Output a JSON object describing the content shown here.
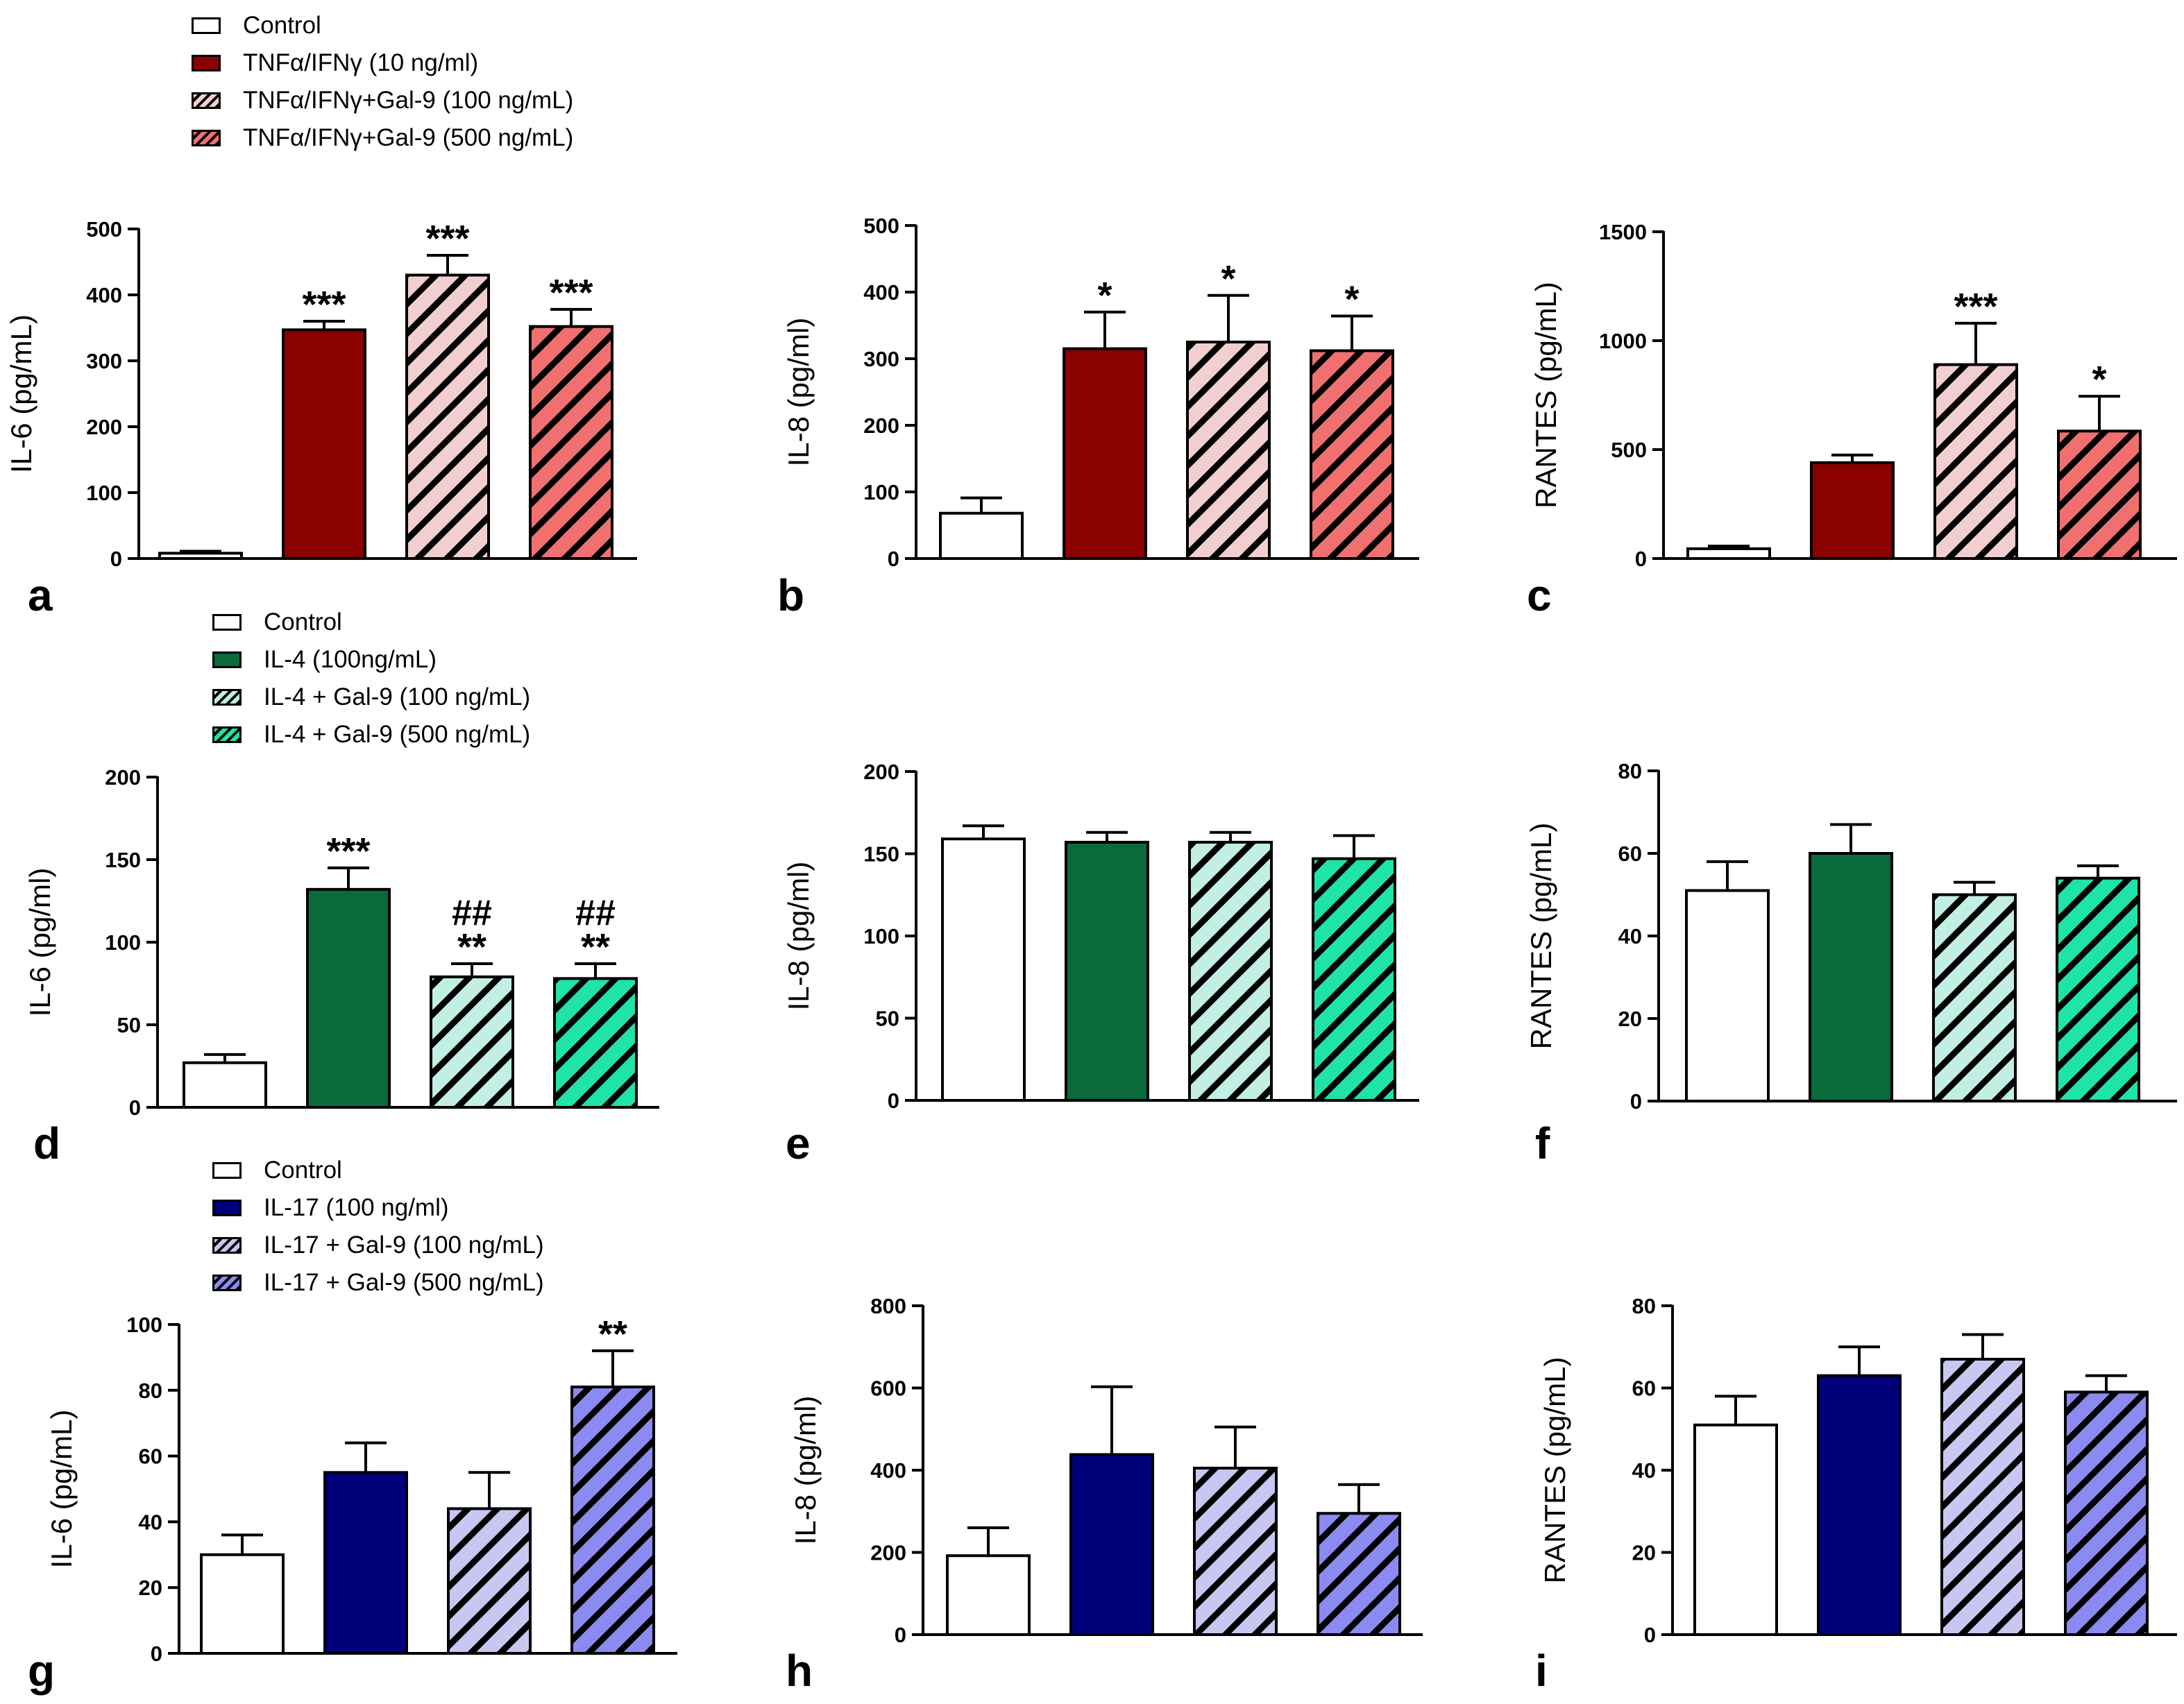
{
  "legends": [
    {
      "id": "tnf",
      "items": [
        {
          "label": "Control",
          "color": "#ffffff",
          "pattern": "none"
        },
        {
          "label": "TNFα/IFNγ (10 ng/ml)",
          "color": "#8b0000",
          "pattern": "none"
        },
        {
          "label": "TNFα/IFNγ+Gal-9 (100 ng/mL)",
          "color": "#f2cfcf",
          "pattern": "hatch"
        },
        {
          "label": "TNFα/IFNγ+Gal-9 (500 ng/mL)",
          "color": "#f07070",
          "pattern": "hatch"
        }
      ]
    },
    {
      "id": "il4",
      "items": [
        {
          "label": "Control",
          "color": "#ffffff",
          "pattern": "none"
        },
        {
          "label": "IL-4 (100ng/mL)",
          "color": "#0a6a3c",
          "pattern": "none"
        },
        {
          "label": "IL-4 + Gal-9 (100 ng/mL)",
          "color": "#c2efe3",
          "pattern": "hatch"
        },
        {
          "label": "IL-4 + Gal-9 (500 ng/mL)",
          "color": "#1fe3a8",
          "pattern": "hatch"
        }
      ]
    },
    {
      "id": "il17",
      "items": [
        {
          "label": "Control",
          "color": "#ffffff",
          "pattern": "none"
        },
        {
          "label": "IL-17 (100 ng/ml)",
          "color": "#00007a",
          "pattern": "none"
        },
        {
          "label": "IL-17 + Gal-9 (100 ng/mL)",
          "color": "#c7c7f2",
          "pattern": "hatch"
        },
        {
          "label": "IL-17 + Gal-9 (500 ng/mL)",
          "color": "#8a8af0",
          "pattern": "hatch"
        }
      ]
    }
  ],
  "chart_data": [
    {
      "panel": "a",
      "type": "bar",
      "ylabel": "IL-6 (pg/mL)",
      "ylim": [
        0,
        500
      ],
      "yticks": [
        0,
        100,
        200,
        300,
        400,
        500
      ],
      "legend": "tnf",
      "values": [
        8,
        347,
        430,
        352
      ],
      "errors": [
        3,
        13,
        30,
        26
      ],
      "sig": [
        "",
        "***",
        "***",
        "***"
      ],
      "sig2": [
        "",
        "",
        "",
        ""
      ]
    },
    {
      "panel": "b",
      "type": "bar",
      "ylabel": "IL-8 (pg/ml)",
      "ylim": [
        0,
        500
      ],
      "yticks": [
        0,
        100,
        200,
        300,
        400,
        500
      ],
      "legend": "tnf",
      "values": [
        68,
        315,
        325,
        312
      ],
      "errors": [
        23,
        55,
        70,
        52
      ],
      "sig": [
        "",
        "*",
        "*",
        "*"
      ],
      "sig2": [
        "",
        "",
        "",
        ""
      ]
    },
    {
      "panel": "c",
      "type": "bar",
      "ylabel": "RANTES (pg/mL)",
      "ylim": [
        0,
        1500
      ],
      "yticks": [
        0,
        500,
        1000,
        1500
      ],
      "legend": "tnf",
      "values": [
        45,
        440,
        890,
        585
      ],
      "errors": [
        12,
        35,
        190,
        160
      ],
      "sig": [
        "",
        "",
        "***",
        "*"
      ],
      "sig2": [
        "",
        "",
        "",
        ""
      ]
    },
    {
      "panel": "d",
      "type": "bar",
      "ylabel": "IL-6 (pg/ml)",
      "ylim": [
        0,
        200
      ],
      "yticks": [
        0,
        50,
        100,
        150,
        200
      ],
      "legend": "il4",
      "values": [
        27,
        132,
        79,
        78
      ],
      "errors": [
        5,
        13,
        8,
        9
      ],
      "sig": [
        "",
        "***",
        "**",
        "**"
      ],
      "sig2": [
        "",
        "",
        "##",
        "##"
      ]
    },
    {
      "panel": "e",
      "type": "bar",
      "ylabel": "IL-8 (pg/ml)",
      "ylim": [
        0,
        200
      ],
      "yticks": [
        0,
        50,
        100,
        150,
        200
      ],
      "legend": "il4",
      "values": [
        159,
        157,
        157,
        147
      ],
      "errors": [
        8,
        6,
        6,
        14
      ],
      "sig": [
        "",
        "",
        "",
        ""
      ],
      "sig2": [
        "",
        "",
        "",
        ""
      ]
    },
    {
      "panel": "f",
      "type": "bar",
      "ylabel": "RANTES (pg/mL)",
      "ylim": [
        0,
        80
      ],
      "yticks": [
        0,
        20,
        40,
        60,
        80
      ],
      "legend": "il4",
      "values": [
        51,
        60,
        50,
        54
      ],
      "errors": [
        7,
        7,
        3,
        3
      ],
      "sig": [
        "",
        "",
        "",
        ""
      ],
      "sig2": [
        "",
        "",
        "",
        ""
      ]
    },
    {
      "panel": "g",
      "type": "bar",
      "ylabel": "IL-6 (pg/mL)",
      "ylim": [
        0,
        100
      ],
      "yticks": [
        0,
        20,
        40,
        60,
        80,
        100
      ],
      "legend": "il17",
      "values": [
        30,
        55,
        44,
        81
      ],
      "errors": [
        6,
        9,
        11,
        11
      ],
      "sig": [
        "",
        "",
        "",
        "**"
      ],
      "sig2": [
        "",
        "",
        "",
        ""
      ]
    },
    {
      "panel": "h",
      "type": "bar",
      "ylabel": "IL-8 (pg/ml)",
      "ylim": [
        0,
        800
      ],
      "yticks": [
        0,
        200,
        400,
        600,
        800
      ],
      "legend": "il17",
      "values": [
        192,
        438,
        405,
        295
      ],
      "errors": [
        68,
        165,
        100,
        70
      ],
      "sig": [
        "",
        "",
        "",
        ""
      ],
      "sig2": [
        "",
        "",
        "",
        ""
      ]
    },
    {
      "panel": "i",
      "type": "bar",
      "ylabel": "RANTES (pg/mL)",
      "ylim": [
        0,
        80
      ],
      "yticks": [
        0,
        20,
        40,
        60,
        80
      ],
      "legend": "il17",
      "values": [
        51,
        63,
        67,
        59
      ],
      "errors": [
        7,
        7,
        6,
        4
      ],
      "sig": [
        "",
        "",
        "",
        ""
      ],
      "sig2": [
        "",
        "",
        "",
        ""
      ]
    }
  ]
}
